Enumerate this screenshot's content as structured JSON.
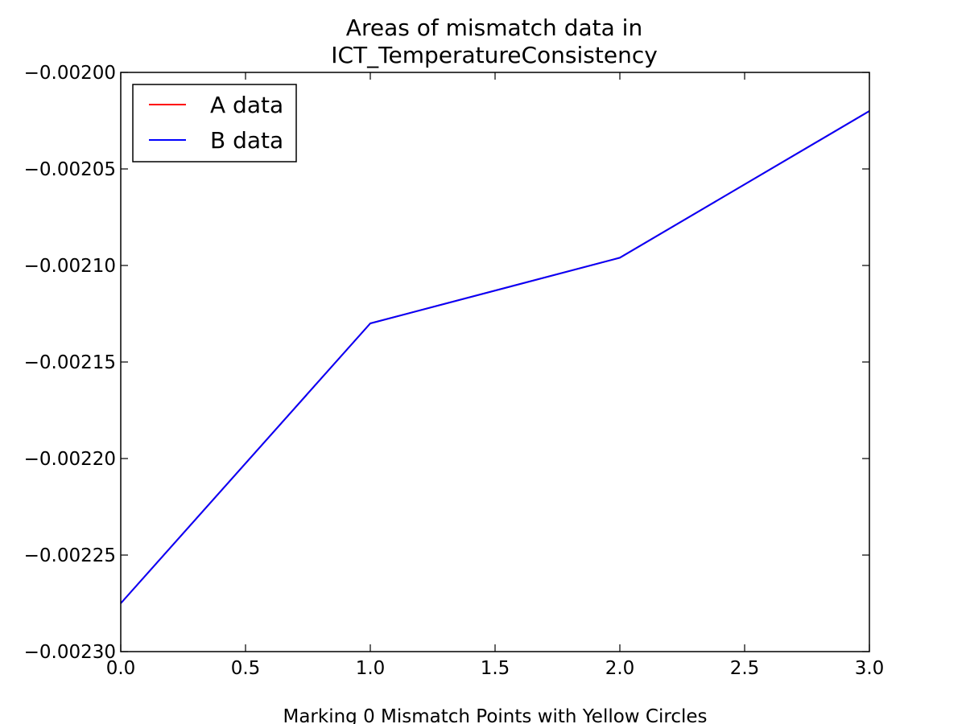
{
  "chart_data": {
    "type": "line",
    "title": [
      "Areas of mismatch data in",
      "ICT_TemperatureConsistency"
    ],
    "xlabel": "Marking 0 Mismatch Points with Yellow Circles",
    "ylabel": "",
    "xlim": [
      0.0,
      3.0
    ],
    "ylim": [
      -0.0023,
      -0.002
    ],
    "x_ticks": [
      0.0,
      0.5,
      1.0,
      1.5,
      2.0,
      2.5,
      3.0
    ],
    "x_tick_labels": [
      "0.0",
      "0.5",
      "1.0",
      "1.5",
      "2.0",
      "2.5",
      "3.0"
    ],
    "y_ticks": [
      -0.002,
      -0.00205,
      -0.0021,
      -0.00215,
      -0.0022,
      -0.00225,
      -0.0023
    ],
    "y_tick_labels": [
      "−0.00200",
      "−0.00205",
      "−0.00210",
      "−0.00215",
      "−0.00220",
      "−0.00225",
      "−0.00230"
    ],
    "grid": false,
    "legend_position": "top-left",
    "x": [
      0,
      1,
      2,
      3
    ],
    "series": [
      {
        "name": "A data",
        "color": "#ff0000",
        "values": [
          -0.002275,
          -0.00213,
          -0.002096,
          -0.00202
        ]
      },
      {
        "name": "B data",
        "color": "#0000ff",
        "values": [
          -0.002275,
          -0.00213,
          -0.002096,
          -0.00202
        ]
      }
    ]
  }
}
